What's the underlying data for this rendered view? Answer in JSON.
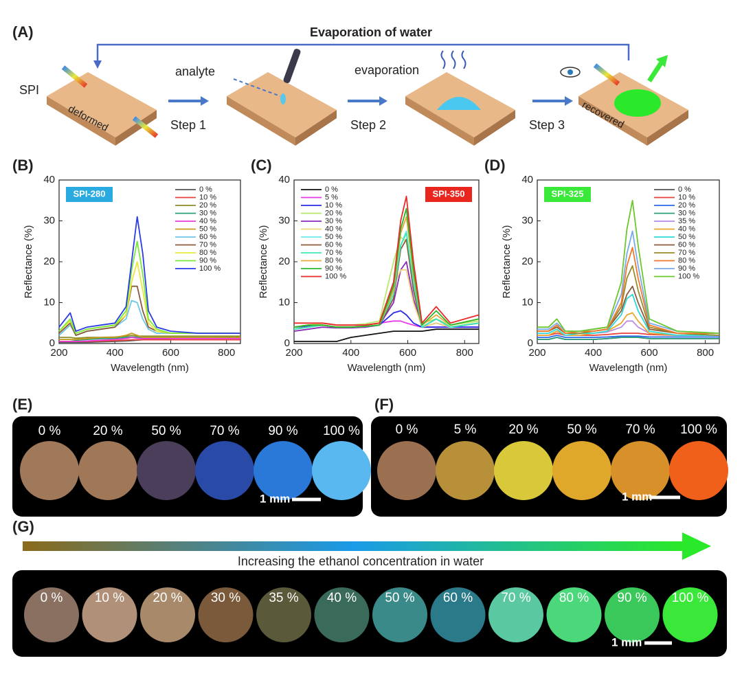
{
  "panel_a": {
    "label": "(A)",
    "title": "Evaporation of water",
    "spi": "SPI",
    "deformed": "deformed",
    "analyte": "analyte",
    "step1": "Step 1",
    "evaporation": "evaporation",
    "step2": "Step 2",
    "step3": "Step 3",
    "recovered": "recovered"
  },
  "chart_data": [
    {
      "type": "line",
      "panel": "(B)",
      "badge": "SPI-280",
      "badge_color": "#29abe2",
      "legend": "upper right",
      "x_label": "Wavelength (nm)",
      "y_label": "Reflectance (%)",
      "xlim": [
        200,
        850
      ],
      "ylim": [
        0,
        40
      ],
      "xticks": [
        200,
        400,
        600,
        800
      ],
      "yticks": [
        0,
        10,
        20,
        30,
        40
      ],
      "x": [
        200,
        240,
        260,
        300,
        350,
        400,
        440,
        460,
        480,
        500,
        520,
        550,
        600,
        700,
        850
      ],
      "series": [
        {
          "name": "0 %",
          "color": "#555555",
          "values": [
            0.3,
            0.3,
            0.3,
            0.3,
            0.4,
            0.5,
            0.6,
            0.7,
            0.8,
            0.9,
            1,
            1.1,
            1.2,
            1.4,
            1.6
          ]
        },
        {
          "name": "10 %",
          "color": "#e8423a",
          "values": [
            0.5,
            0.5,
            0.5,
            0.5,
            0.6,
            0.7,
            0.8,
            0.9,
            0.9,
            0.9,
            0.9,
            0.9,
            0.9,
            0.9,
            0.9
          ]
        },
        {
          "name": "20 %",
          "color": "#8c8c2a",
          "values": [
            1.5,
            1.5,
            1.3,
            1.5,
            1.5,
            1.6,
            1.8,
            2,
            1.8,
            1.8,
            1.8,
            1.8,
            1.8,
            1.8,
            1.8
          ]
        },
        {
          "name": "30 %",
          "color": "#2a9d7a",
          "values": [
            1,
            1,
            0.8,
            1,
            1.2,
            1.3,
            1.5,
            1.6,
            1.5,
            1.5,
            1.5,
            1.5,
            1.5,
            1.5,
            1.5
          ]
        },
        {
          "name": "40 %",
          "color": "#e83ad8",
          "values": [
            0.5,
            0.5,
            0.5,
            0.6,
            0.8,
            1,
            1.2,
            1.5,
            1.3,
            1.2,
            1.2,
            1.2,
            1.2,
            1.2,
            1.2
          ]
        },
        {
          "name": "50 %",
          "color": "#c89a1a",
          "values": [
            1,
            1,
            1,
            1.2,
            1.5,
            1.5,
            2,
            2.5,
            2,
            1.5,
            1.5,
            1.5,
            1.5,
            1.5,
            1.5
          ]
        },
        {
          "name": "60 %",
          "color": "#6ec6e8",
          "values": [
            2,
            4.5,
            2,
            3,
            3.5,
            4,
            6,
            10.5,
            10,
            6,
            3.5,
            2.5,
            2.5,
            2.5,
            2.5
          ]
        },
        {
          "name": "70 %",
          "color": "#8a5a3a",
          "values": [
            2.5,
            5,
            2,
            3,
            3.5,
            4,
            7,
            14,
            14,
            8,
            4,
            3,
            2.5,
            2.5,
            2.5
          ]
        },
        {
          "name": "80 %",
          "color": "#e8e83a",
          "values": [
            3,
            5.5,
            2.5,
            3.5,
            4,
            4.5,
            7,
            15,
            20,
            13,
            5,
            3,
            2.5,
            2.5,
            2.5
          ]
        },
        {
          "name": "90 %",
          "color": "#7ae83a",
          "values": [
            3,
            6,
            2.5,
            3.5,
            4,
            4.5,
            8,
            18,
            25,
            17,
            6,
            3.5,
            2.5,
            2.5,
            2.5
          ]
        },
        {
          "name": "100 %",
          "color": "#2a3ae8",
          "values": [
            4,
            7.5,
            3,
            4,
            4.5,
            5,
            9,
            20,
            31,
            22,
            8,
            4,
            3,
            2.5,
            2.5
          ]
        }
      ]
    },
    {
      "type": "line",
      "panel": "(C)",
      "badge": "SPI-350",
      "badge_color": "#e8261e",
      "legend": "upper left",
      "x_label": "Wavelength (nm)",
      "y_label": "Reflectance (%)",
      "xlim": [
        200,
        850
      ],
      "ylim": [
        0,
        40
      ],
      "xticks": [
        200,
        400,
        600,
        800
      ],
      "yticks": [
        0,
        10,
        20,
        30,
        40
      ],
      "x": [
        200,
        250,
        300,
        350,
        400,
        450,
        500,
        550,
        575,
        595,
        620,
        650,
        700,
        750,
        850
      ],
      "series": [
        {
          "name": "0 %",
          "color": "#111111",
          "values": [
            0.5,
            0.5,
            0.5,
            0.5,
            1.5,
            2,
            2.5,
            3,
            3,
            3,
            3,
            3,
            3.5,
            3.5,
            3.5
          ]
        },
        {
          "name": "5 %",
          "color": "#e83ae8",
          "values": [
            4,
            4.5,
            5,
            4.5,
            4.5,
            4.5,
            5,
            5.5,
            5.5,
            5,
            4.5,
            4,
            4,
            4,
            4
          ]
        },
        {
          "name": "10 %",
          "color": "#2a2ae8",
          "values": [
            4,
            4.2,
            4.5,
            4,
            4,
            4,
            4.5,
            7.5,
            8,
            7,
            5,
            4,
            4,
            4,
            4
          ]
        },
        {
          "name": "20 %",
          "color": "#b8e86a",
          "values": [
            4,
            4.5,
            5,
            4.5,
            4.5,
            4.8,
            5.5,
            20,
            26,
            25,
            14,
            5,
            6,
            4.5,
            5.5
          ]
        },
        {
          "name": "30 %",
          "color": "#8a2ab8",
          "values": [
            3,
            3.5,
            4,
            3.8,
            3.8,
            4,
            4.5,
            10,
            18,
            20,
            11,
            4,
            5,
            4,
            5
          ]
        },
        {
          "name": "40 %",
          "color": "#ecd87a",
          "values": [
            4,
            4.5,
            5,
            4.5,
            4.5,
            4.5,
            5,
            14,
            18,
            18,
            10,
            4,
            5,
            4,
            5
          ]
        },
        {
          "name": "50 %",
          "color": "#6ae8e8",
          "values": [
            3.5,
            4,
            4.5,
            4,
            4,
            4.2,
            4.5,
            12,
            24,
            27.5,
            14,
            4,
            6,
            4,
            5
          ]
        },
        {
          "name": "60 %",
          "color": "#8a5a3a",
          "values": [
            3.5,
            4,
            4.5,
            4,
            4,
            4.2,
            4.5,
            11,
            23,
            25.5,
            13,
            4,
            6,
            4,
            5
          ]
        },
        {
          "name": "70 %",
          "color": "#3ae8b8",
          "values": [
            3.5,
            4,
            4.5,
            4,
            4,
            4.2,
            4.5,
            12,
            24,
            27,
            15,
            4,
            6,
            4,
            5
          ]
        },
        {
          "name": "80 %",
          "color": "#e8a83a",
          "values": [
            4,
            4.5,
            4.5,
            4,
            4,
            4.2,
            4.5,
            13,
            27,
            31,
            17,
            4.5,
            7,
            4.5,
            6
          ]
        },
        {
          "name": "90 %",
          "color": "#2ab82a",
          "values": [
            4,
            4.5,
            4.5,
            4,
            4,
            4.2,
            4.5,
            14,
            28,
            33,
            18,
            4.5,
            8,
            4.5,
            6
          ]
        },
        {
          "name": "100 %",
          "color": "#e82a2a",
          "values": [
            5,
            5,
            5,
            4.5,
            4.5,
            4.5,
            5,
            15,
            30,
            36,
            20,
            5,
            9,
            5,
            7
          ]
        }
      ]
    },
    {
      "type": "line",
      "panel": "(D)",
      "badge": "SPI-325",
      "badge_color": "#3ae83a",
      "legend": "upper right",
      "x_label": "Wavelength (nm)",
      "y_label": "Reflectance (%)",
      "xlim": [
        200,
        850
      ],
      "ylim": [
        0,
        40
      ],
      "xticks": [
        200,
        400,
        600,
        800
      ],
      "yticks": [
        0,
        10,
        20,
        30,
        40
      ],
      "x": [
        200,
        240,
        270,
        300,
        350,
        400,
        450,
        500,
        520,
        540,
        560,
        600,
        700,
        850
      ],
      "series": [
        {
          "name": "0 %",
          "color": "#555555",
          "values": [
            1,
            1,
            1.5,
            1,
            1,
            1,
            1.2,
            1.5,
            1.5,
            1.5,
            1.5,
            1.2,
            1.2,
            1.2
          ]
        },
        {
          "name": "10 %",
          "color": "#e8423a",
          "values": [
            2,
            2,
            2.5,
            2,
            2,
            2,
            2.2,
            2.5,
            2.5,
            2.5,
            2.5,
            2.2,
            2,
            2
          ]
        },
        {
          "name": "20 %",
          "color": "#2a6ae8",
          "values": [
            1.5,
            1.5,
            2,
            1.5,
            1.5,
            1.5,
            1.6,
            1.8,
            1.8,
            1.8,
            1.8,
            1.6,
            1.6,
            1.6
          ]
        },
        {
          "name": "30 %",
          "color": "#2a9d7a",
          "values": [
            1,
            1,
            1.5,
            1,
            1,
            1,
            1.2,
            1.5,
            1.5,
            1.5,
            1.5,
            1.2,
            1.2,
            1.2
          ]
        },
        {
          "name": "35 %",
          "color": "#b88ae8",
          "values": [
            2,
            2,
            3,
            2,
            2,
            2.5,
            2.8,
            4,
            5.5,
            5.5,
            4,
            2.5,
            2,
            2
          ]
        },
        {
          "name": "40 %",
          "color": "#e8a82a",
          "values": [
            2,
            2,
            3,
            2,
            2,
            2.5,
            3,
            5,
            7,
            7.5,
            5.5,
            2.5,
            2,
            2
          ]
        },
        {
          "name": "50 %",
          "color": "#2ad8d8",
          "values": [
            2.5,
            2.5,
            3.5,
            2,
            2.5,
            2.5,
            3,
            7,
            11,
            12,
            8,
            3,
            2,
            2
          ]
        },
        {
          "name": "60 %",
          "color": "#8a5a3a",
          "values": [
            3,
            3,
            4,
            2.5,
            2.5,
            3,
            3.5,
            8,
            12,
            14,
            10,
            3.5,
            2.5,
            2
          ]
        },
        {
          "name": "70 %",
          "color": "#9a8a2a",
          "values": [
            3,
            3,
            4.5,
            2.5,
            2.5,
            3,
            3.5,
            9,
            16,
            19,
            13,
            4,
            2.5,
            2
          ]
        },
        {
          "name": "80 %",
          "color": "#f0782a",
          "values": [
            3,
            3,
            4.5,
            2.5,
            3,
            3,
            3.5,
            10,
            19,
            23.5,
            16,
            4.5,
            2.5,
            2.5
          ]
        },
        {
          "name": "90 %",
          "color": "#7aaae8",
          "values": [
            3.5,
            3.5,
            5,
            3,
            3,
            3.5,
            4,
            12,
            22,
            27.5,
            19,
            5,
            3,
            2.5
          ]
        },
        {
          "name": "100 %",
          "color": "#6ac82a",
          "values": [
            4,
            4,
            6,
            3,
            3,
            3.5,
            4,
            15,
            28,
            35,
            24,
            6,
            3,
            2.5
          ]
        }
      ]
    }
  ],
  "photos": [
    {
      "panel": "(E)",
      "scale_bar": "1 mm",
      "circles": [
        {
          "label": "0 %",
          "color": "#a0785a"
        },
        {
          "label": "20 %",
          "color": "#a07858"
        },
        {
          "label": "50 %",
          "color": "#4a3e5a"
        },
        {
          "label": "70 %",
          "color": "#2a4aa8"
        },
        {
          "label": "90 %",
          "color": "#2a78d8"
        },
        {
          "label": "100 %",
          "color": "#5ab8f0"
        }
      ]
    },
    {
      "panel": "(F)",
      "scale_bar": "1 mm",
      "circles": [
        {
          "label": "0 %",
          "color": "#9a7050"
        },
        {
          "label": "5 %",
          "color": "#b8903a"
        },
        {
          "label": "20 %",
          "color": "#d8c83a"
        },
        {
          "label": "50 %",
          "color": "#e0a82a"
        },
        {
          "label": "70 %",
          "color": "#d8902a"
        },
        {
          "label": "100 %",
          "color": "#f0601a"
        }
      ]
    },
    {
      "panel": "(G)",
      "scale_bar": "1 mm",
      "caption": "Increasing the ethanol concentration in water",
      "circles": [
        {
          "label": "0 %",
          "color": "#8a7060"
        },
        {
          "label": "10 %",
          "color": "#b09078"
        },
        {
          "label": "20 %",
          "color": "#a88a6a"
        },
        {
          "label": "30 %",
          "color": "#7a5a3a"
        },
        {
          "label": "35 %",
          "color": "#5a5a3a"
        },
        {
          "label": "40 %",
          "color": "#3a6a5a"
        },
        {
          "label": "50 %",
          "color": "#3a8a8a"
        },
        {
          "label": "60 %",
          "color": "#2a7a8a"
        },
        {
          "label": "70 %",
          "color": "#5ac8a0"
        },
        {
          "label": "80 %",
          "color": "#4ad87a"
        },
        {
          "label": "90 %",
          "color": "#3ac85a"
        },
        {
          "label": "100 %",
          "color": "#3ae83a"
        }
      ]
    }
  ]
}
